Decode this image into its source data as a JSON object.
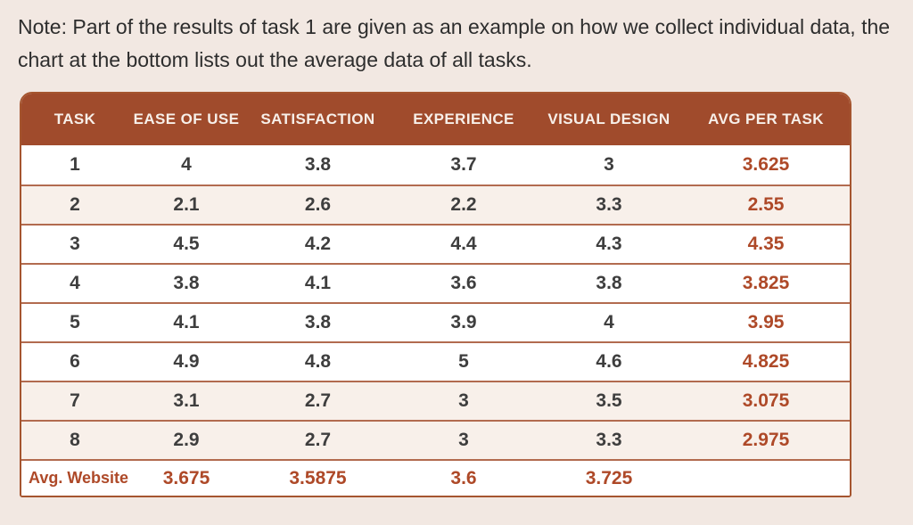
{
  "note": "Note: Part of the results of task 1 are given as an example on how we collect individual data, the chart at the bottom lists out the average data of all tasks.",
  "colors": {
    "page_background": "#F2E8E2",
    "header_background": "#A04B2C",
    "accent_text": "#AE4928",
    "body_text": "#3E3E3E",
    "shaded_row": "#F8F0EA",
    "row_separator": "#B26B4F"
  },
  "table": {
    "columns": [
      "TASK",
      "EASE OF USE",
      "SATISFACTION",
      "EXPERIENCE",
      "VISUAL DESIGN",
      "AVG PER TASK"
    ],
    "rows": [
      [
        "1",
        "4",
        "3.8",
        "3.7",
        "3",
        "3.625"
      ],
      [
        "2",
        "2.1",
        "2.6",
        "2.2",
        "3.3",
        "2.55"
      ],
      [
        "3",
        "4.5",
        "4.2",
        "4.4",
        "4.3",
        "4.35"
      ],
      [
        "4",
        "3.8",
        "4.1",
        "3.6",
        "3.8",
        "3.825"
      ],
      [
        "5",
        "4.1",
        "3.8",
        "3.9",
        "4",
        "3.95"
      ],
      [
        "6",
        "4.9",
        "4.8",
        "5",
        "4.6",
        "4.825"
      ],
      [
        "7",
        "3.1",
        "2.7",
        "3",
        "3.5",
        "3.075"
      ],
      [
        "8",
        "2.9",
        "2.7",
        "3",
        "3.3",
        "2.975"
      ]
    ],
    "footer": [
      "Avg. Website",
      "3.675",
      "3.5875",
      "3.6",
      "3.725",
      ""
    ]
  }
}
